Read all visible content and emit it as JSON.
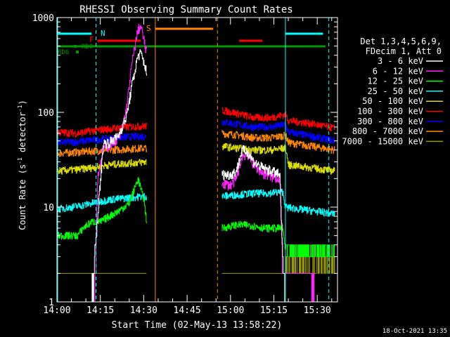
{
  "chart_data": {
    "type": "line",
    "title": "RHESSI Observing Summary Count Rates",
    "xlabel": "Start Time (02-May-13 13:58:22)",
    "ylabel": "Count Rate (s",
    "ylabel_sup": "-1",
    "ylabel_rest": " detector",
    "ylabel_sup2": "-1",
    "ylabel_end": ")",
    "yscale": "log",
    "ylim": [
      1,
      1000
    ],
    "xlim_minutes": [
      0,
      97
    ],
    "x_tick_labels": [
      "14:00",
      "14:15",
      "14:30",
      "14:45",
      "15:00",
      "15:15",
      "15:30"
    ],
    "x_tick_minutes": [
      0,
      15,
      30,
      45,
      60,
      75,
      90
    ],
    "y_tick_labels": [
      "1",
      "10",
      "100",
      "1000"
    ],
    "y_tick_values": [
      1,
      10,
      100,
      1000
    ],
    "legend_header": [
      "Det 1,3,4,5,6,9,",
      "FDecim 1, Att 0"
    ],
    "timestamp": "18-Oct-2021 13:35",
    "gaps_minutes": [
      [
        34,
        56
      ]
    ],
    "series": [
      {
        "name": "3 - 6 keV",
        "color": "#ffffff",
        "pre": [
          [
            0,
            1
          ],
          [
            12,
            1
          ],
          [
            13,
            3
          ],
          [
            16,
            47
          ],
          [
            18,
            48
          ],
          [
            21,
            55
          ],
          [
            24,
            90
          ],
          [
            26,
            200
          ],
          [
            28,
            400
          ],
          [
            29,
            420
          ],
          [
            30,
            340
          ],
          [
            31,
            260
          ]
        ],
        "post": [
          [
            57,
            22
          ],
          [
            60,
            22
          ],
          [
            62,
            24
          ],
          [
            64,
            40
          ],
          [
            66,
            38
          ],
          [
            68,
            30
          ],
          [
            71,
            26
          ],
          [
            74,
            24
          ],
          [
            77,
            22
          ],
          [
            78,
            3
          ],
          [
            79,
            1
          ]
        ]
      },
      {
        "name": "6 - 12 keV",
        "color": "#ff22ff",
        "pre": [
          [
            13,
            1
          ],
          [
            14,
            20
          ],
          [
            16,
            42
          ],
          [
            18,
            45
          ],
          [
            20,
            50
          ],
          [
            22,
            58
          ],
          [
            24,
            110
          ],
          [
            26,
            350
          ],
          [
            28,
            750
          ],
          [
            29,
            800
          ],
          [
            30,
            580
          ],
          [
            31,
            420
          ]
        ],
        "post": [
          [
            57,
            18
          ],
          [
            60,
            17
          ],
          [
            62,
            20
          ],
          [
            64,
            35
          ],
          [
            66,
            36
          ],
          [
            68,
            28
          ],
          [
            71,
            23
          ],
          [
            74,
            21
          ],
          [
            77,
            20
          ],
          [
            78,
            2
          ],
          [
            88,
            2
          ],
          [
            89,
            1
          ]
        ]
      },
      {
        "name": "12 - 25 keV",
        "color": "#00ff00",
        "pre": [
          [
            0,
            5
          ],
          [
            7,
            5
          ],
          [
            9,
            6
          ],
          [
            12,
            7
          ],
          [
            15,
            7
          ],
          [
            18,
            8
          ],
          [
            21,
            9
          ],
          [
            25,
            11
          ],
          [
            28,
            20
          ],
          [
            30,
            12
          ],
          [
            31,
            7
          ]
        ],
        "post": [
          [
            57,
            6
          ],
          [
            62,
            6.5
          ],
          [
            66,
            6.5
          ],
          [
            72,
            6
          ],
          [
            78,
            6
          ],
          [
            79,
            3.5
          ],
          [
            96,
            3.5
          ]
        ]
      },
      {
        "name": "25 - 50 keV",
        "color": "#00ffff",
        "pre": [
          [
            0,
            9.5
          ],
          [
            5,
            10
          ],
          [
            9,
            10.5
          ],
          [
            12,
            11
          ],
          [
            18,
            12
          ],
          [
            24,
            12.5
          ],
          [
            30,
            13
          ],
          [
            31,
            13
          ]
        ],
        "post": [
          [
            57,
            13
          ],
          [
            62,
            13.5
          ],
          [
            68,
            14
          ],
          [
            72,
            14
          ],
          [
            78,
            14.5
          ],
          [
            79,
            10
          ],
          [
            84,
            9.5
          ],
          [
            90,
            9
          ],
          [
            96,
            8.5
          ]
        ]
      },
      {
        "name": "50 - 100 keV",
        "color": "#dddd00",
        "pre": [
          [
            0,
            24
          ],
          [
            7,
            25
          ],
          [
            12,
            26
          ],
          [
            18,
            28
          ],
          [
            24,
            29
          ],
          [
            31,
            30
          ]
        ],
        "post": [
          [
            57,
            44
          ],
          [
            62,
            42
          ],
          [
            68,
            40
          ],
          [
            74,
            40
          ],
          [
            79,
            42
          ],
          [
            80,
            28
          ],
          [
            88,
            26
          ],
          [
            96,
            24
          ]
        ]
      },
      {
        "name": "100 - 300 keV",
        "color": "#ff0000",
        "pre": [
          [
            0,
            62
          ],
          [
            7,
            60
          ],
          [
            12,
            64
          ],
          [
            18,
            67
          ],
          [
            24,
            70
          ],
          [
            31,
            72
          ]
        ],
        "post": [
          [
            57,
            105
          ],
          [
            62,
            98
          ],
          [
            68,
            88
          ],
          [
            74,
            88
          ],
          [
            79,
            95
          ],
          [
            80,
            82
          ],
          [
            88,
            76
          ],
          [
            96,
            68
          ]
        ]
      },
      {
        "name": "300 - 800 keV",
        "color": "#0000ff",
        "pre": [
          [
            0,
            48
          ],
          [
            7,
            49
          ],
          [
            12,
            51
          ],
          [
            18,
            53
          ],
          [
            24,
            55
          ],
          [
            31,
            56
          ]
        ],
        "post": [
          [
            57,
            80
          ],
          [
            62,
            75
          ],
          [
            68,
            70
          ],
          [
            74,
            70
          ],
          [
            79,
            74
          ],
          [
            80,
            62
          ],
          [
            88,
            56
          ],
          [
            96,
            50
          ]
        ]
      },
      {
        "name": "800 - 7000 keV",
        "color": "#ff8800",
        "pre": [
          [
            0,
            37
          ],
          [
            7,
            38
          ],
          [
            12,
            39
          ],
          [
            18,
            40
          ],
          [
            24,
            41
          ],
          [
            31,
            42
          ]
        ],
        "post": [
          [
            57,
            60
          ],
          [
            62,
            58
          ],
          [
            68,
            54
          ],
          [
            74,
            54
          ],
          [
            79,
            57
          ],
          [
            80,
            48
          ],
          [
            88,
            44
          ],
          [
            96,
            40
          ]
        ]
      },
      {
        "name": "7000 - 15000 keV",
        "color": "#999900",
        "pre": [
          [
            0,
            2
          ],
          [
            31,
            2
          ]
        ],
        "post": [
          [
            57,
            2
          ],
          [
            79,
            2
          ],
          [
            80,
            3
          ],
          [
            96,
            3
          ]
        ]
      }
    ],
    "markers": [
      {
        "label": "N",
        "color": "#00ffff"
      },
      {
        "label": "F",
        "color": "#ff0000"
      },
      {
        "label": "S",
        "color": "#ff8800"
      },
      {
        "label": "RD0",
        "color": "#009900"
      },
      {
        "label": "RD6",
        "color": "#009900"
      }
    ]
  }
}
